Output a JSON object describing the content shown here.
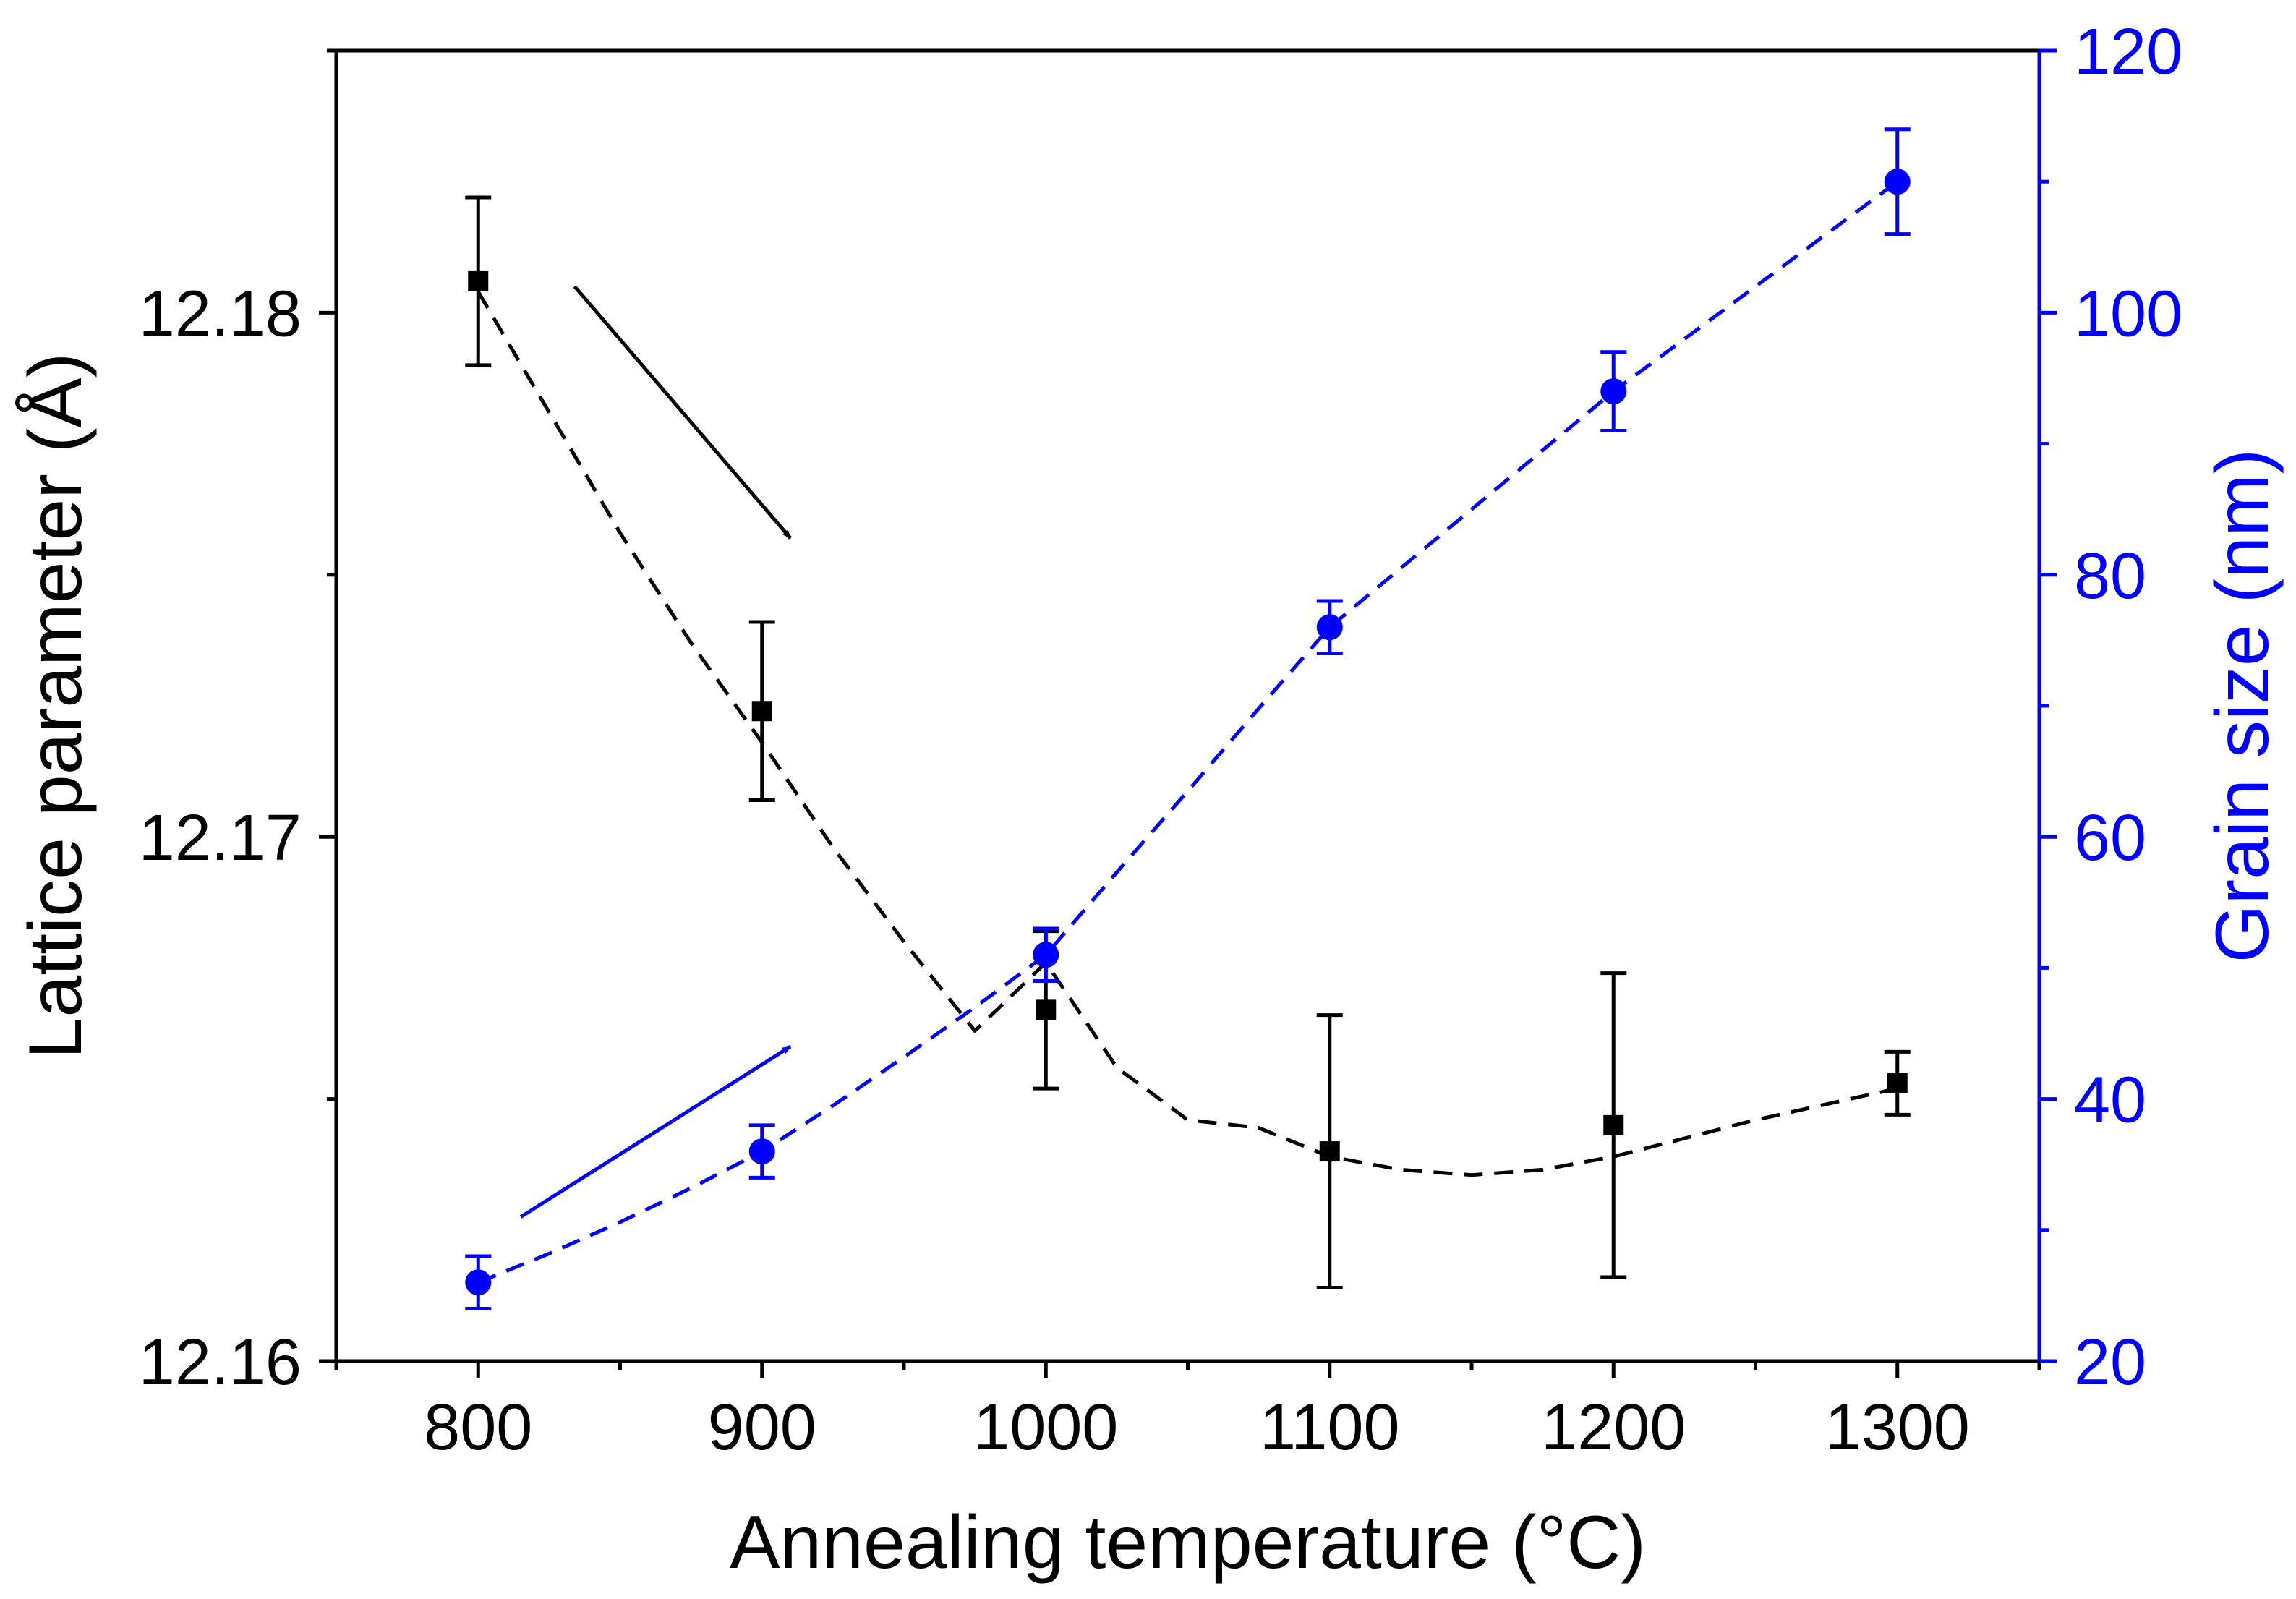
{
  "chart_data": {
    "type": "scatter",
    "xlabel": "Annealing temperature (°C)",
    "ylabel_left": "Lattice parameter (Å)",
    "ylabel_right": "Grain size (nm)",
    "xlim": [
      750,
      1350
    ],
    "ylim_left": [
      12.16,
      12.185
    ],
    "ylim_right": [
      20,
      120
    ],
    "x_ticks": [
      800,
      900,
      1000,
      1100,
      1200,
      1300
    ],
    "y_left_ticks": [
      12.16,
      12.17,
      12.18
    ],
    "y_left_tick_labels": [
      "12.16",
      "12.17",
      "12.18"
    ],
    "y_right_ticks": [
      20,
      40,
      60,
      80,
      100,
      120
    ],
    "colors": {
      "lattice": "#000000",
      "grain": "#0000ff"
    },
    "series": [
      {
        "name": "Lattice parameter",
        "axis": "left",
        "marker": "square",
        "x": [
          800,
          900,
          1000,
          1100,
          1200,
          1300
        ],
        "y": [
          12.1806,
          12.1724,
          12.1667,
          12.164,
          12.1645,
          12.1653
        ],
        "err": [
          0.0016,
          0.0017,
          0.0015,
          0.0026,
          0.0029,
          0.0006
        ],
        "fit": {
          "style": "dashed",
          "x": [
            800,
            825,
            850,
            875,
            900,
            925,
            950,
            975,
            1000,
            1025,
            1050,
            1075,
            1100,
            1125,
            1150,
            1175,
            1200,
            1225,
            1250,
            1275,
            1300
          ],
          "y": [
            12.1804,
            12.1781,
            12.1758,
            12.1737,
            12.1718,
            12.1698,
            12.168,
            12.1663,
            12.1676,
            12.1656,
            12.1646,
            12.16445,
            12.1639,
            12.16365,
            12.16355,
            12.16365,
            12.1639,
            12.16425,
            12.1646,
            12.1649,
            12.1652
          ]
        }
      },
      {
        "name": "Grain size",
        "axis": "right",
        "marker": "circle",
        "x": [
          800,
          900,
          1000,
          1100,
          1200,
          1300
        ],
        "y": [
          26,
          36,
          51,
          76,
          94,
          110
        ],
        "err": [
          2,
          2,
          2,
          2,
          3,
          4
        ],
        "fit": {
          "style": "dashed",
          "x": [
            800,
            825,
            850,
            875,
            900,
            925,
            950,
            975,
            1000,
            1025,
            1050,
            1075,
            1100,
            1125,
            1150,
            1175,
            1200,
            1225,
            1250,
            1275,
            1300
          ],
          "y": [
            26,
            28.2,
            30.6,
            33.2,
            36,
            39.5,
            43.2,
            47,
            51,
            57.3,
            63.5,
            69.8,
            76,
            80.5,
            85,
            89.5,
            94,
            98,
            102,
            106,
            110
          ]
        }
      }
    ],
    "annotations": [
      {
        "type": "arrow",
        "color": "black",
        "from": [
          834,
          12.1805
        ],
        "to": [
          910,
          12.1757
        ]
      },
      {
        "type": "arrow",
        "color": "blue",
        "from": [
          815,
          31
        ],
        "to": [
          910,
          44
        ]
      }
    ]
  }
}
